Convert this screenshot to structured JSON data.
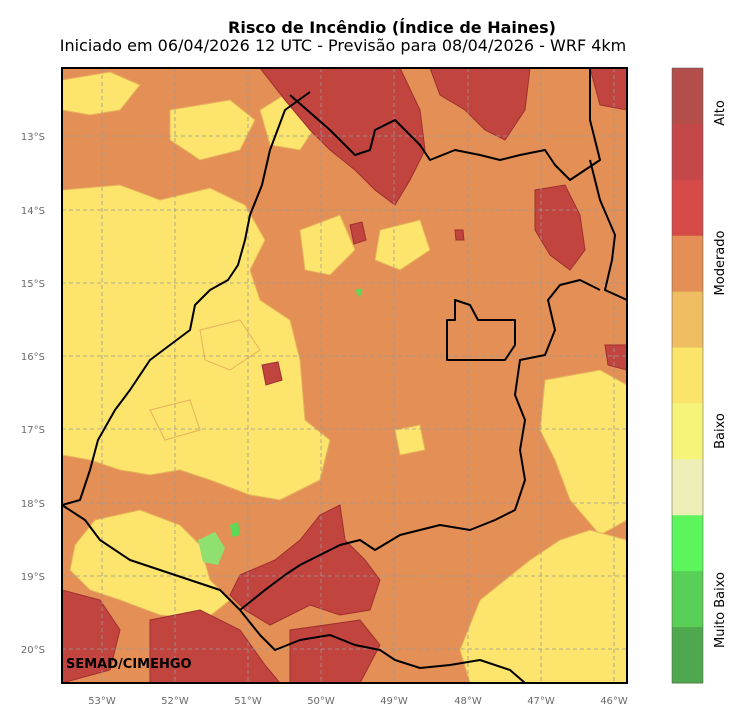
{
  "header": {
    "title": "Risco de Incêndio (Índice de Haines)",
    "subtitle": "Iniciado em 06/04/2026 12 UTC - Previsão para 08/04/2026 - WRF 4km"
  },
  "map": {
    "credit": "SEMAD/CIMEHGO",
    "lat_ticks": [
      "13°S",
      "14°S",
      "15°S",
      "16°S",
      "17°S",
      "18°S",
      "19°S",
      "20°S"
    ],
    "lon_ticks": [
      "53°W",
      "52°W",
      "51°W",
      "50°W",
      "49°W",
      "48°W",
      "47°W",
      "46°W"
    ],
    "colors": {
      "high": "#c1443f",
      "moderate": "#e48f55",
      "low": "#fde46c",
      "very_low": "#5cd957",
      "boundary": "#000000"
    }
  },
  "colorbar": {
    "colors": [
      "#b34e4a",
      "#c4484a",
      "#d64a4a",
      "#e48f55",
      "#efbd62",
      "#fce46b",
      "#f6f37b",
      "#eeeeb7",
      "#5cf55b",
      "#58cf56",
      "#4fa84d"
    ],
    "labels": [
      "Alto",
      "Moderado",
      "Baixo",
      "Muito Baixo"
    ]
  }
}
